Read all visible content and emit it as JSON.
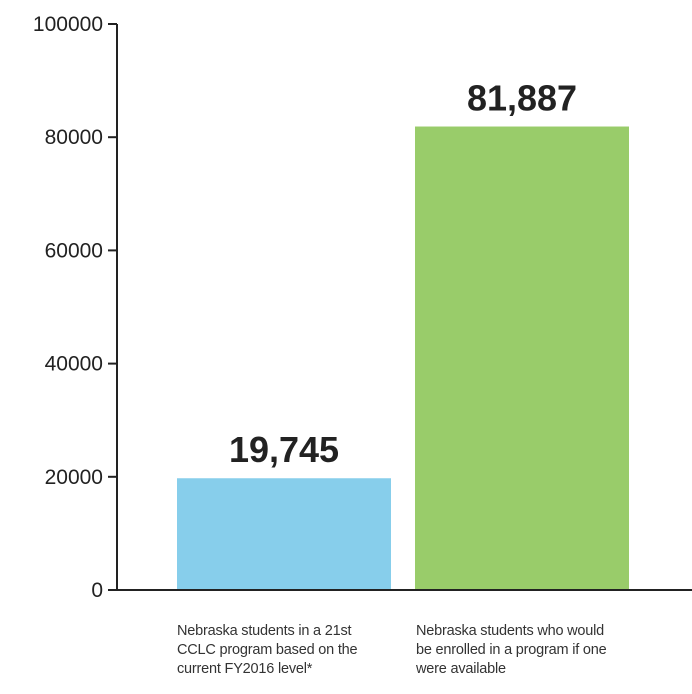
{
  "chart_data": {
    "type": "bar",
    "categories": [
      "Nebraska students in a 21st CCLC program based on the current FY2016 level*",
      "Nebraska students who would be enrolled in a program if one were available"
    ],
    "category_lines": [
      [
        "Nebraska students in a 21st",
        "CCLC program based on the",
        "current FY2016 level*"
      ],
      [
        "Nebraska students who would",
        "be enrolled in a program if one",
        "were available"
      ]
    ],
    "values": [
      19745,
      81887
    ],
    "data_labels": [
      "19,745",
      "81,887"
    ],
    "colors": [
      "#87CEEB",
      "#99CC6A"
    ],
    "ylim": [
      0,
      100000
    ],
    "yticks": [
      0,
      20000,
      40000,
      60000,
      80000,
      100000
    ],
    "grid": false,
    "title": "",
    "xlabel": "",
    "ylabel": ""
  }
}
